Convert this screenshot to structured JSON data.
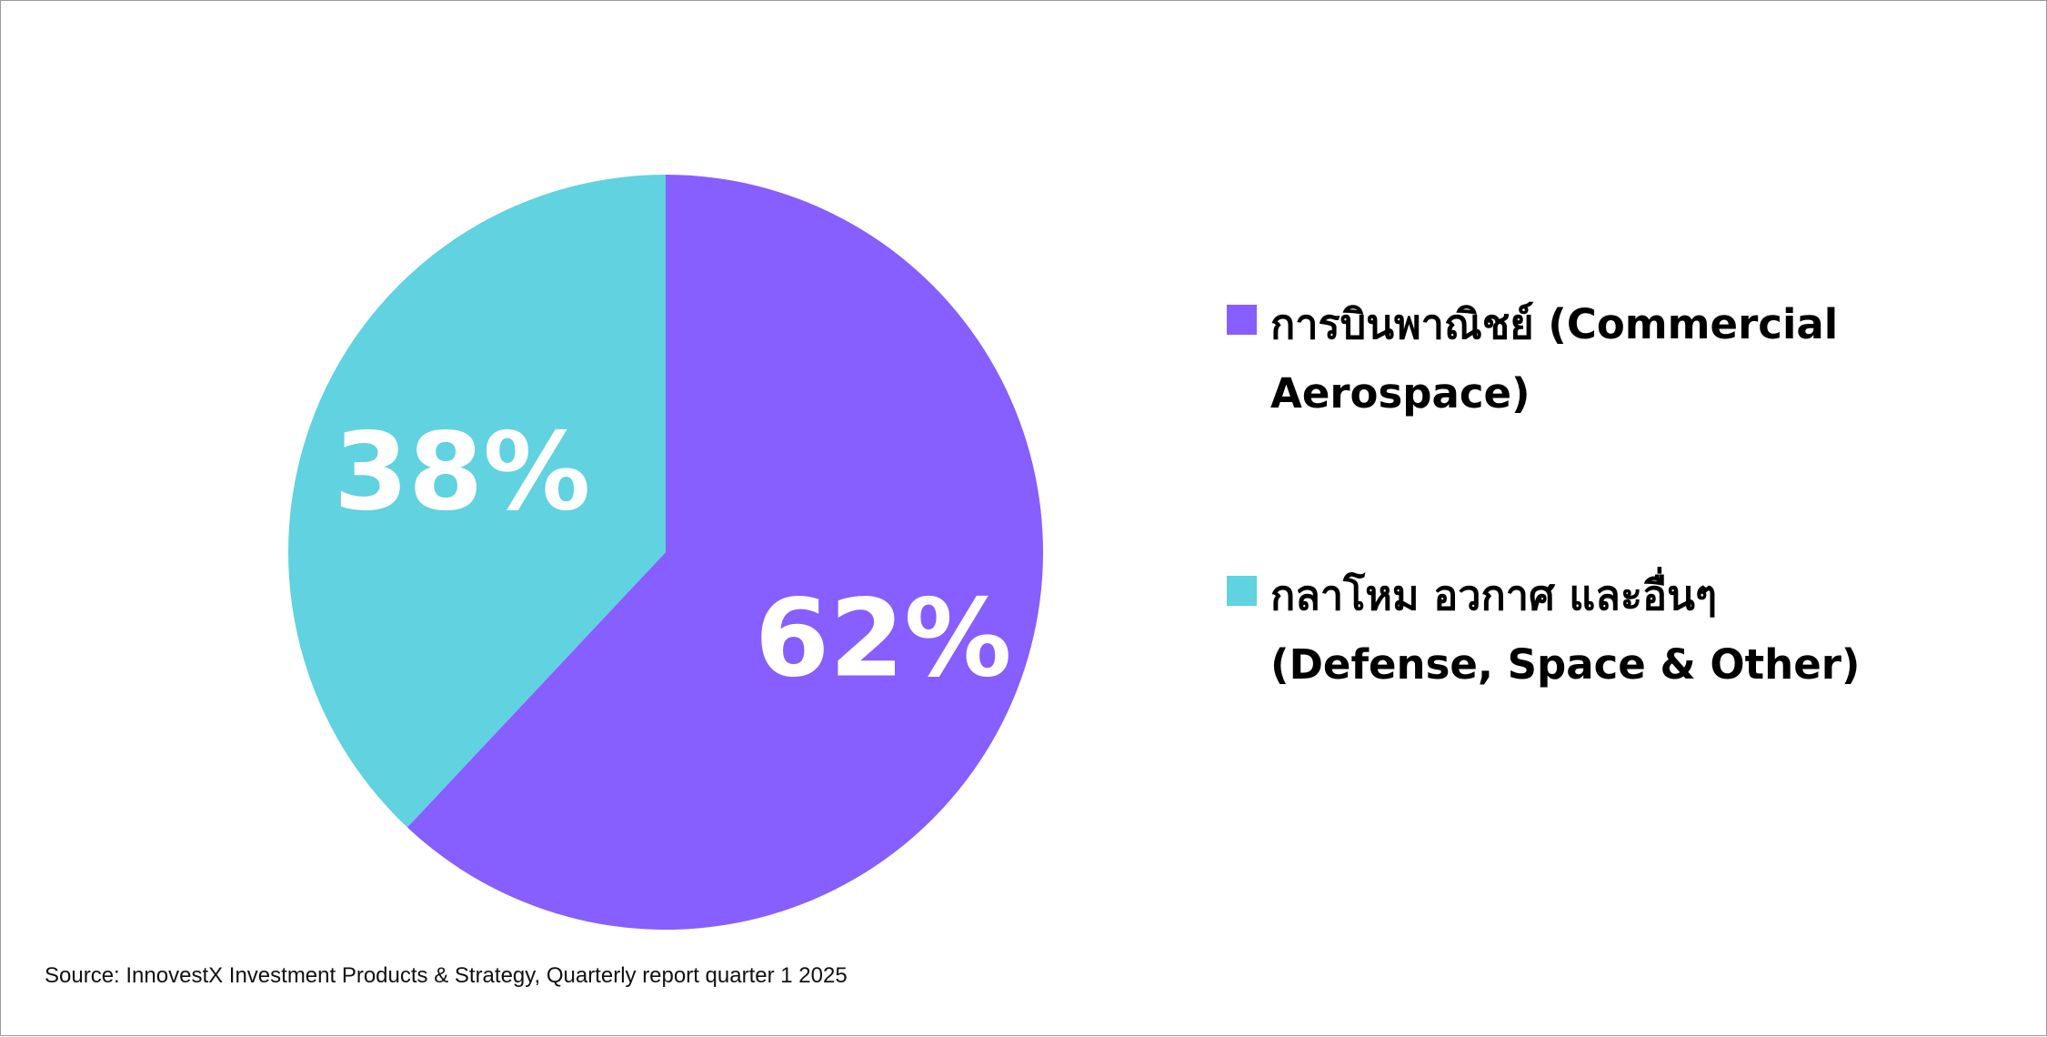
{
  "chart_data": {
    "type": "pie",
    "slices": [
      {
        "label": "การบินพาณิชย์ (Commercial Aerospace)",
        "value": 62,
        "display": "62%",
        "color": "#875eff"
      },
      {
        "label": "กลาโหม อวกาศ และอื่นๆ (Defense, Space & Other)",
        "value": 38,
        "display": "38%",
        "color": "#60d2e0"
      }
    ],
    "start_angle": "12 o'clock",
    "direction": "clockwise",
    "legend_position": "right"
  },
  "legend": [
    {
      "line1": "การบินพาณิชย์ (Commercial",
      "line2": "Aerospace)",
      "color": "#875eff"
    },
    {
      "line1": "กลาโหม อวกาศ และอื่นๆ",
      "line2": "(Defense, Space & Other)",
      "color": "#60d2e0"
    }
  ],
  "source": "Source: InnovestX Investment Products & Strategy, Quarterly report quarter 1 2025"
}
